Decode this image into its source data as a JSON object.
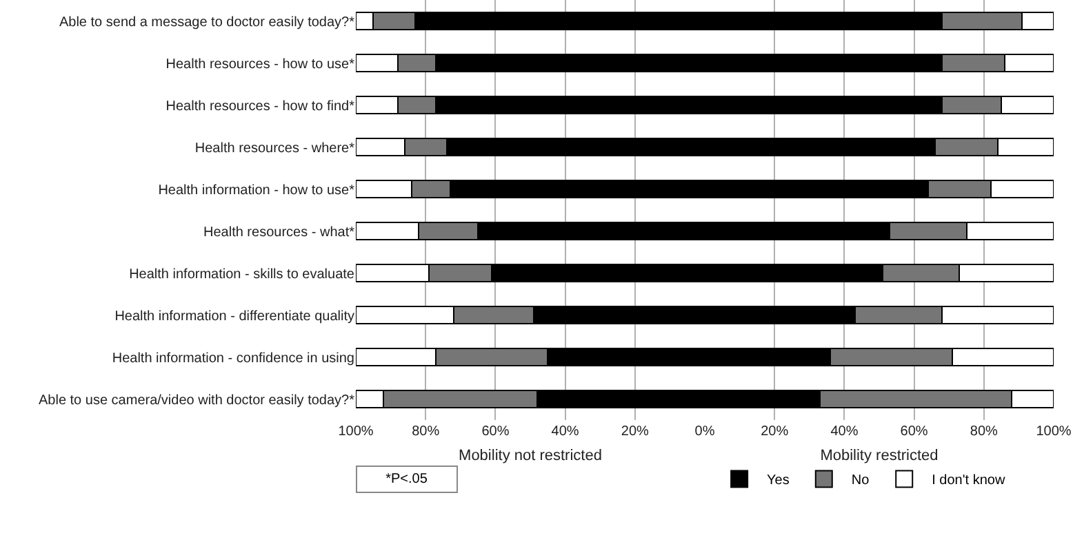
{
  "chart_data": [
    {
      "type": "bar",
      "orientation": "horizontal",
      "stacked": true,
      "grid": "x",
      "xlabel": "Mobility not restricted",
      "categories": [
        "Able to send a message to doctor easily today?*",
        "Health resources - how to use*",
        "Health resources - how to find*",
        "Health resources - where*",
        "Health information - how to use*",
        "Health resources - what*",
        "Health information - skills to evaluate",
        "Health information - differentiate quality",
        "Health information - confidence in using",
        "Able to use camera/video with doctor easily today?*"
      ],
      "series": [
        {
          "color": "#000000",
          "values": [
            83,
            77,
            77,
            74,
            73,
            65,
            61,
            49,
            45,
            48
          ]
        },
        {
          "color": "#767676",
          "values": [
            12,
            11,
            11,
            12,
            11,
            17,
            18,
            23,
            32,
            44
          ]
        },
        {
          "color": "#ffffff",
          "values": [
            5,
            12,
            12,
            14,
            16,
            18,
            21,
            28,
            23,
            8
          ]
        }
      ],
      "xlim": [
        100,
        0
      ],
      "xticks": [
        {
          "value": 100,
          "label": "100%"
        },
        {
          "value": 80,
          "label": "80%"
        },
        {
          "value": 60,
          "label": "60%"
        },
        {
          "value": 40,
          "label": "40%"
        },
        {
          "value": 20,
          "label": "20%"
        },
        {
          "value": 0,
          "label": "0%"
        }
      ],
      "annotations": [
        "*P<.05"
      ]
    },
    {
      "type": "bar",
      "orientation": "horizontal",
      "stacked": true,
      "grid": "x",
      "xlabel": "Mobility restricted",
      "legend": "bottom",
      "tick_labels": "x",
      "categories": [
        null,
        null,
        null,
        null,
        null,
        null,
        null,
        null,
        null,
        null
      ],
      "series": [
        {
          "name": "Yes",
          "color": "#000000",
          "values": [
            68,
            68,
            68,
            66,
            64,
            53,
            51,
            43,
            36,
            33
          ]
        },
        {
          "name": "No",
          "color": "#767676",
          "values": [
            23,
            18,
            17,
            18,
            18,
            22,
            22,
            25,
            35,
            55
          ]
        },
        {
          "name": "I don't know",
          "color": "#ffffff",
          "values": [
            9,
            14,
            15,
            16,
            18,
            25,
            27,
            32,
            29,
            12
          ]
        }
      ],
      "xlim": [
        0,
        100
      ],
      "xticks": [
        {
          "value": 20,
          "label": "20%"
        },
        {
          "value": 40,
          "label": "40%"
        },
        {
          "value": 60,
          "label": "60%"
        },
        {
          "value": 80,
          "label": "80%"
        },
        {
          "value": 100,
          "label": "100%"
        }
      ]
    }
  ]
}
